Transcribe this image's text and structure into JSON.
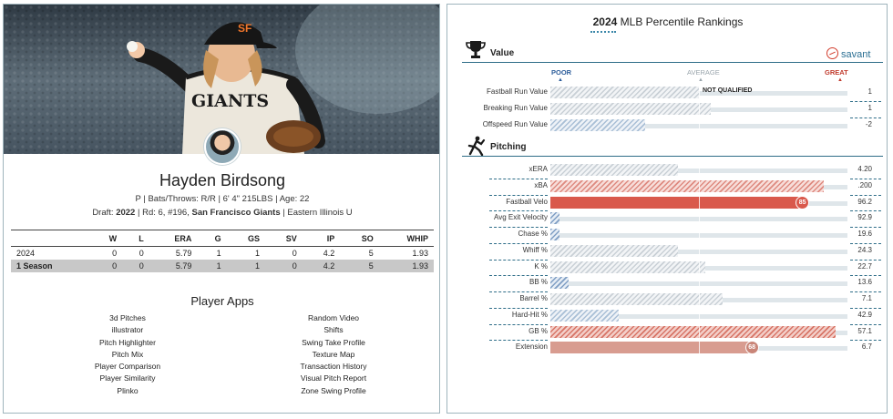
{
  "player": {
    "name": "Hayden Birdsong",
    "position": "P",
    "bats_throws": "Bats/Throws: R/R",
    "height_weight": "6' 4\" 215LBS",
    "age": "Age: 22",
    "draft_prefix": "Draft:",
    "draft_year": "2022",
    "draft_detail": "Rd: 6, #196,",
    "draft_team": "San Francisco Giants",
    "school": "Eastern Illinois U",
    "jersey_text": "GIANTS"
  },
  "stats_table": {
    "headers": [
      "",
      "W",
      "L",
      "ERA",
      "G",
      "GS",
      "SV",
      "IP",
      "SO",
      "WHIP"
    ],
    "rows": [
      [
        "2024",
        "0",
        "0",
        "5.79",
        "1",
        "1",
        "0",
        "4.2",
        "5",
        "1.93"
      ]
    ],
    "total": [
      "1 Season",
      "0",
      "0",
      "5.79",
      "1",
      "1",
      "0",
      "4.2",
      "5",
      "1.93"
    ]
  },
  "player_apps": {
    "title": "Player Apps",
    "left": [
      "3d Pitches",
      "illustrator",
      "Pitch Highlighter",
      "Pitch Mix",
      "Player Comparison",
      "Player Similarity",
      "Plinko"
    ],
    "right": [
      "Random Video",
      "Shifts",
      "Swing Take Profile",
      "Texture Map",
      "Transaction History",
      "Visual Pitch Report",
      "Zone Swing Profile"
    ]
  },
  "rankings": {
    "title_year": "2024",
    "title_rest": "MLB Percentile Rankings",
    "brand": "savant",
    "scale": {
      "poor": "POOR",
      "average": "AVERAGE",
      "great": "GREAT"
    },
    "colors": {
      "poor": "#2b5c9a",
      "great": "#c0392b",
      "average": "#9aa5ac"
    },
    "value_section": {
      "title": "Value",
      "icon": "trophy-icon",
      "rows": [
        {
          "label": "Fastball Run Value",
          "value": "1",
          "percentile": 50,
          "note": "NOT QUALIFIED",
          "tone": "grey"
        },
        {
          "label": "Breaking Run Value",
          "value": "1",
          "percentile": 54,
          "tone": "grey"
        },
        {
          "label": "Offspeed Run Value",
          "value": "-2",
          "percentile": 32,
          "tone": "blue"
        }
      ]
    },
    "pitching_section": {
      "title": "Pitching",
      "icon": "pitcher-icon",
      "rows": [
        {
          "label": "xERA",
          "value": "4.20",
          "percentile": 43,
          "tone": "grey"
        },
        {
          "label": "xBA",
          "value": ".200",
          "percentile": 92,
          "tone": "red"
        },
        {
          "label": "Fastball Velo",
          "value": "96.2",
          "percentile": 85,
          "badge": "85",
          "tone": "solid-red"
        },
        {
          "label": "Avg Exit Velocity",
          "value": "92.9",
          "percentile": 3,
          "tone": "blue-d"
        },
        {
          "label": "Chase %",
          "value": "19.6",
          "percentile": 3,
          "tone": "blue-d"
        },
        {
          "label": "Whiff %",
          "value": "24.3",
          "percentile": 43,
          "tone": "grey"
        },
        {
          "label": "K %",
          "value": "22.7",
          "percentile": 52,
          "tone": "grey"
        },
        {
          "label": "BB %",
          "value": "13.6",
          "percentile": 6,
          "tone": "blue-d"
        },
        {
          "label": "Barrel %",
          "value": "7.1",
          "percentile": 58,
          "tone": "grey"
        },
        {
          "label": "Hard-Hit %",
          "value": "42.9",
          "percentile": 23,
          "tone": "blue"
        },
        {
          "label": "GB %",
          "value": "57.1",
          "percentile": 96,
          "tone": "red-d"
        },
        {
          "label": "Extension",
          "value": "6.7",
          "percentile": 68,
          "badge": "68",
          "tone": "solid-salmon"
        }
      ]
    }
  }
}
